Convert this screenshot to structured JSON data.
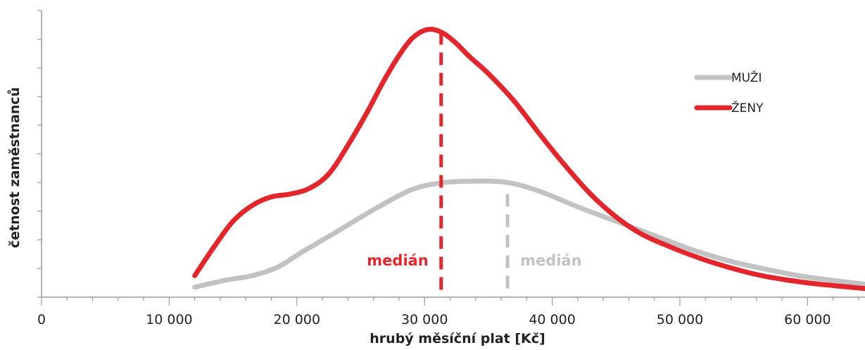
{
  "chart_data": {
    "type": "line",
    "xlabel": "hrubý měsíční plat [Kč]",
    "ylabel": "četnost zaměstnanců",
    "xlim": [
      0,
      64500
    ],
    "ylim": [
      0,
      100
    ],
    "x_ticks": [
      0,
      10000,
      20000,
      30000,
      40000,
      50000,
      60000
    ],
    "x_tick_labels": [
      "0",
      "10  000",
      "20  000",
      "30  000",
      "40  000",
      "50  000",
      "60  000"
    ],
    "y_tick_labels_shown": false,
    "grid": false,
    "legend_position": "top-right",
    "series": [
      {
        "name": "MUŽI",
        "color": "#c2c2c2",
        "x": [
          12000,
          14500,
          16500,
          18500,
          20500,
          23000,
          26000,
          29000,
          31500,
          34000,
          36500,
          39000,
          42000,
          45000,
          48000,
          51000,
          54000,
          57000,
          60000,
          64500
        ],
        "y": [
          3.5,
          6,
          7.5,
          10.5,
          16,
          22.5,
          30.5,
          37.5,
          40,
          40.5,
          40,
          37,
          31.5,
          26.5,
          21.5,
          16.5,
          12.5,
          9.5,
          7,
          4.5
        ]
      },
      {
        "name": "ŽENY",
        "color": "#e3262b",
        "x": [
          12000,
          13500,
          15000,
          16500,
          18000,
          19500,
          21000,
          22500,
          24000,
          25500,
          27000,
          28500,
          29500,
          30500,
          31500,
          32500,
          33500,
          35000,
          37000,
          39000,
          41000,
          43000,
          45000,
          47000,
          49000,
          51000,
          53000,
          55000,
          57000,
          60000,
          64500
        ],
        "y": [
          7.5,
          17.5,
          26.5,
          32,
          35,
          36,
          38,
          43,
          53,
          64.5,
          77,
          87.5,
          92,
          93.5,
          92,
          88.5,
          84,
          78,
          68.5,
          57,
          46,
          36,
          28,
          22,
          18,
          14.5,
          11.5,
          9,
          7,
          5,
          3
        ]
      }
    ],
    "medians": [
      {
        "series": "ŽENY",
        "x": 31300,
        "label": "medián",
        "color": "#e3262b",
        "line_top": 92.5
      },
      {
        "series": "MUŽI",
        "x": 36500,
        "label": "medián",
        "color": "#c2c2c2",
        "line_top": 36
      }
    ]
  }
}
